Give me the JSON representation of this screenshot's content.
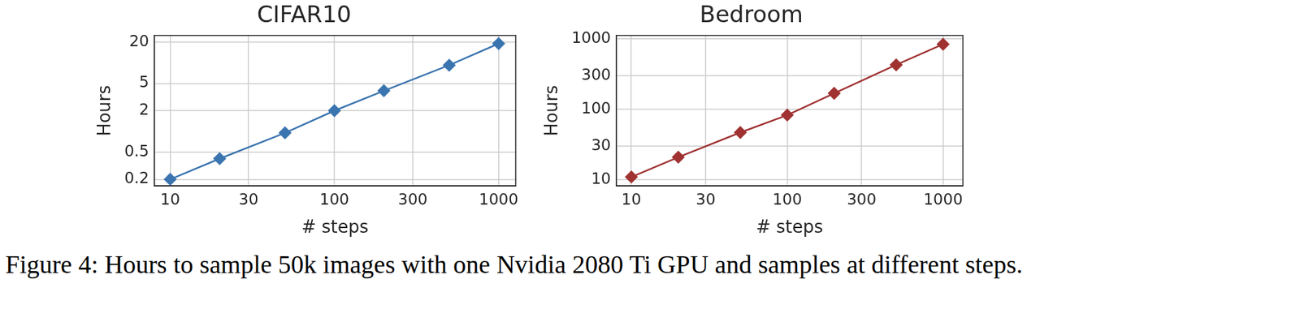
{
  "caption": "Figure 4: Hours to sample 50k images with one Nvidia 2080 Ti GPU and samples at different steps.",
  "chart_data": [
    {
      "type": "line",
      "title": "CIFAR10",
      "x_label": "# steps",
      "y_label": "Hours",
      "x": [
        10,
        20,
        50,
        100,
        200,
        500,
        1000
      ],
      "values": [
        0.2,
        0.4,
        0.95,
        2,
        3.9,
        9.2,
        19
      ],
      "color": "#3b75af",
      "marker": "diamond",
      "log": true,
      "grid": true,
      "xlim": [
        8,
        1270
      ],
      "ylim": [
        0.16,
        25
      ],
      "xticks": [
        10,
        30,
        100,
        300,
        1000
      ],
      "yticks": [
        0.2,
        0.5,
        2,
        5,
        20
      ]
    },
    {
      "type": "line",
      "title": "Bedroom",
      "x_label": "# steps",
      "y_label": "Hours",
      "x": [
        10,
        20,
        50,
        100,
        200,
        500,
        1000
      ],
      "values": [
        11,
        21,
        47,
        83,
        169,
        428,
        840
      ],
      "color": "#a03232",
      "marker": "diamond",
      "log": true,
      "grid": true,
      "xlim": [
        8,
        1340
      ],
      "ylim": [
        8.2,
        1120
      ],
      "xticks": [
        10,
        30,
        100,
        300,
        1000
      ],
      "yticks": [
        10,
        30,
        100,
        300,
        1000
      ]
    }
  ]
}
